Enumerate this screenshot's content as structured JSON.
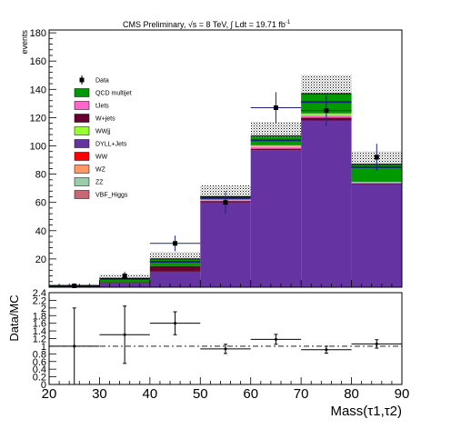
{
  "chart_data": {
    "type": "bar",
    "title_prefix": "CMS Preliminary, ",
    "title_sqrt": "√s",
    "title_energy": " = 8 TeV, ",
    "title_lumi": "∫ Ldt = 19.71 fb",
    "title_lumi_exp": "-1",
    "ylabel": "events",
    "ratio_ylabel": "Data/MC",
    "xlabel": "Mass(τ1,τ2)",
    "xlim": [
      20,
      90
    ],
    "ylim": [
      0,
      182
    ],
    "ratio_ylim": [
      0,
      2.4
    ],
    "bin_edges": [
      20,
      30,
      40,
      50,
      60,
      70,
      80,
      90
    ],
    "x_ticks": [
      "20",
      "30",
      "40",
      "50",
      "60",
      "70",
      "80",
      "90"
    ],
    "y_ticks": [
      "20",
      "40",
      "60",
      "80",
      "100",
      "120",
      "140",
      "160",
      "180"
    ],
    "ratio_ticks": [
      "0",
      "0.2",
      "0.4",
      "0.6",
      "0.8",
      "1",
      "1.2",
      "1.4",
      "1.6",
      "1.8",
      "2",
      "2.2",
      "2.4"
    ],
    "legend_position": "top-left",
    "data_label": "Data",
    "stack": [
      {
        "name": "DYLL+Jets",
        "color": "#6633a3",
        "values": [
          0.5,
          3,
          11,
          60,
          97,
          118,
          73
        ]
      },
      {
        "name": "W+jets",
        "color": "#660033",
        "values": [
          0.2,
          0.5,
          4,
          1,
          1,
          2,
          0.5
        ]
      },
      {
        "name": "tJets",
        "color": "#ff66cc",
        "values": [
          0,
          0,
          0,
          0.5,
          1,
          1.5,
          0.5
        ]
      },
      {
        "name": "WWjj",
        "color": "#99ff33",
        "values": [
          0,
          0,
          0,
          0,
          0.5,
          0.5,
          0
        ]
      },
      {
        "name": "ZZ",
        "color": "#99ccaa",
        "values": [
          0,
          0,
          0,
          0.5,
          0.5,
          0.5,
          0.5
        ]
      },
      {
        "name": "WZ",
        "color": "#ff9966",
        "values": [
          0,
          0,
          0,
          0,
          0.5,
          0.5,
          0
        ]
      },
      {
        "name": "WW",
        "color": "#ff0000",
        "values": [
          0,
          0,
          0,
          0,
          0,
          0,
          0
        ]
      },
      {
        "name": "VBF_Higgs",
        "color": "#cc6677",
        "values": [
          0,
          0,
          0,
          0,
          0,
          0,
          0
        ]
      },
      {
        "name": "QCD multijet",
        "color": "#009900",
        "values": [
          0.3,
          2.5,
          5,
          2.5,
          6,
          14,
          12.5
        ]
      }
    ],
    "legend_order": [
      "QCD multijet",
      "tJets",
      "W+jets",
      "WWjj",
      "DYLL+Jets",
      "WW",
      "WZ",
      "ZZ",
      "VBF_Higgs"
    ],
    "blue_line": [
      1,
      6,
      18,
      63,
      104,
      131,
      85
    ],
    "mc_total": [
      1,
      6,
      20,
      64,
      107,
      137,
      87
    ],
    "mc_uncertainty": [
      1,
      3,
      5,
      8,
      10,
      13,
      9
    ],
    "data": {
      "x": [
        25,
        35,
        45,
        55,
        65,
        75,
        85
      ],
      "y": [
        1,
        8,
        31,
        60,
        127,
        125,
        92
      ],
      "yerr": [
        1,
        3,
        5.5,
        8,
        11,
        11,
        9.5
      ],
      "xerr_bins": [
        0,
        0,
        1,
        0,
        1,
        1,
        0
      ]
    },
    "ratio": {
      "x": [
        25,
        35,
        45,
        55,
        65,
        75,
        85
      ],
      "y": [
        1.0,
        1.3,
        1.6,
        0.93,
        1.18,
        0.91,
        1.06
      ],
      "yerr": [
        1.0,
        0.75,
        0.3,
        0.12,
        0.13,
        0.09,
        0.11
      ]
    }
  }
}
